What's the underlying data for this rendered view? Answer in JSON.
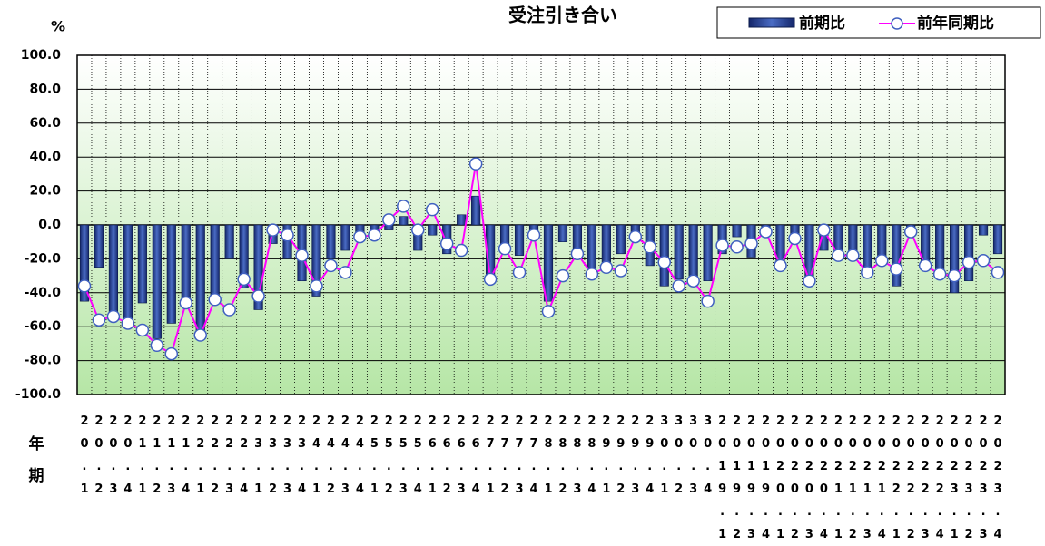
{
  "chart_data": {
    "type": "bar-line",
    "title": "受注引き合い",
    "y_unit": "%",
    "row_labels": [
      "年",
      "期"
    ],
    "categories": [
      "20.1",
      "20.2",
      "20.3",
      "20.4",
      "21.1",
      "21.2",
      "21.3",
      "21.4",
      "22.1",
      "22.2",
      "22.3",
      "22.4",
      "23.1",
      "23.2",
      "23.3",
      "23.4",
      "24.1",
      "24.2",
      "24.3",
      "24.4",
      "25.1",
      "25.2",
      "25.3",
      "25.4",
      "26.1",
      "26.2",
      "26.3",
      "26.4",
      "27.1",
      "27.2",
      "27.3",
      "27.4",
      "28.1",
      "28.2",
      "28.3",
      "28.4",
      "29.1",
      "29.2",
      "29.3",
      "29.4",
      "30.1",
      "30.2",
      "30.3",
      "30.4",
      "2019.1",
      "2019.2",
      "2019.3",
      "2019.4",
      "2020.1",
      "2020.2",
      "2020.3",
      "2020.4",
      "2021.1",
      "2021.2",
      "2021.3",
      "2021.4",
      "2022.1",
      "2022.2",
      "2022.3",
      "2022.4",
      "2023.1",
      "2023.2",
      "2023.3",
      "2023.4"
    ],
    "series": [
      {
        "name": "前期比",
        "kind": "bar",
        "color": "#2b4b9b",
        "values": [
          -45,
          -25,
          -55,
          -57,
          -46,
          -67,
          -58,
          -44,
          -64,
          -44,
          -20,
          -37,
          -50,
          -11,
          -20,
          -33,
          -42,
          -20,
          -15,
          -5,
          -3,
          -3,
          5,
          -15,
          -6,
          -17,
          6,
          17,
          -30,
          -14,
          -18,
          -6,
          -45,
          -10,
          -18,
          -27,
          -22,
          -17,
          -7,
          -24,
          -36,
          -32,
          -32,
          -33,
          -17,
          -7,
          -19,
          -3,
          -26,
          -10,
          -31,
          -15,
          -18,
          -17,
          -28,
          -22,
          -36,
          -4,
          -24,
          -28,
          -40,
          -33,
          -6,
          -17
        ]
      },
      {
        "name": "前年同期比",
        "kind": "line",
        "color": "#ff00ff",
        "values": [
          -36,
          -56,
          -54,
          -58,
          -62,
          -71,
          -76,
          -46,
          -65,
          -44,
          -50,
          -32,
          -42,
          -3,
          -6,
          -18,
          -36,
          -24,
          -28,
          -7,
          -6,
          3,
          11,
          -3,
          9,
          -11,
          -15,
          36,
          -32,
          -14,
          -28,
          -6,
          -51,
          -30,
          -17,
          -29,
          -25,
          -27,
          -7,
          -13,
          -22,
          -36,
          -33,
          -45,
          -12,
          -13,
          -11,
          -4,
          -24,
          -8,
          -33,
          -3,
          -18,
          -18,
          -28,
          -21,
          -26,
          -4,
          -24,
          -29,
          -30,
          -22,
          -21,
          -28
        ]
      }
    ],
    "ylim": [
      -100,
      100
    ],
    "yticks": [
      {
        "value": -100,
        "label": "-100.0"
      },
      {
        "value": -80,
        "label": "-80.0"
      },
      {
        "value": -60,
        "label": "-60.0"
      },
      {
        "value": -40,
        "label": "-40.0"
      },
      {
        "value": -20,
        "label": "-20.0"
      },
      {
        "value": 0,
        "label": "0.0"
      },
      {
        "value": 20,
        "label": "20.0"
      },
      {
        "value": 40,
        "label": "40.0"
      },
      {
        "value": 60,
        "label": "60.0"
      },
      {
        "value": 80,
        "label": "80.0"
      },
      {
        "value": 100,
        "label": "100.0"
      }
    ],
    "grid": true
  }
}
